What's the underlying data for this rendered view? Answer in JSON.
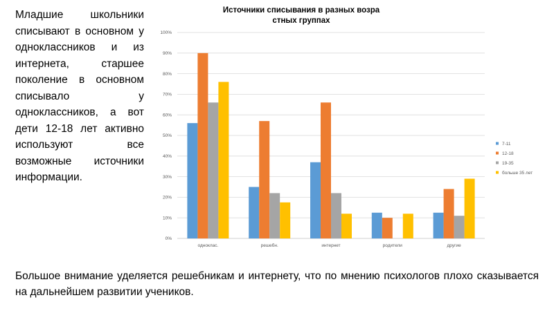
{
  "left_text": "Младшие школьники списывают в основном у одноклассников и из интернета, старшее поколение в основном списывало у одноклассников, а вот дети 12-18 лет активно используют все возможные источники информации.",
  "bottom_text": "Большое внимание уделяется решебникам и интернету, что по мнению психологов плохо сказывается на дальнейшем развитии учеников.",
  "chart_data": {
    "type": "bar",
    "title_line1": "Источники списывания в разных возра",
    "title_line2": "стных группах",
    "categories": [
      "одноклас.",
      "решебн.",
      "интернет",
      "родители",
      "другие"
    ],
    "y_ticks": [
      "0%",
      "10%",
      "20%",
      "30%",
      "40%",
      "50%",
      "60%",
      "70%",
      "80%",
      "90%",
      "100%"
    ],
    "ylim": [
      0,
      100
    ],
    "grid": true,
    "legend_position": "right",
    "series": [
      {
        "name": "7-11",
        "color": "#5B9BD5",
        "values": [
          56,
          25,
          37,
          12.5,
          12.5
        ]
      },
      {
        "name": "12-18",
        "color": "#ED7D31",
        "values": [
          90,
          57,
          66,
          10,
          24
        ]
      },
      {
        "name": "19-35",
        "color": "#A5A5A5",
        "values": [
          66,
          22,
          22,
          0,
          11
        ]
      },
      {
        "name": "больше 35 лет",
        "color": "#FFC000",
        "values": [
          76,
          17.5,
          12,
          12,
          29
        ]
      }
    ]
  }
}
